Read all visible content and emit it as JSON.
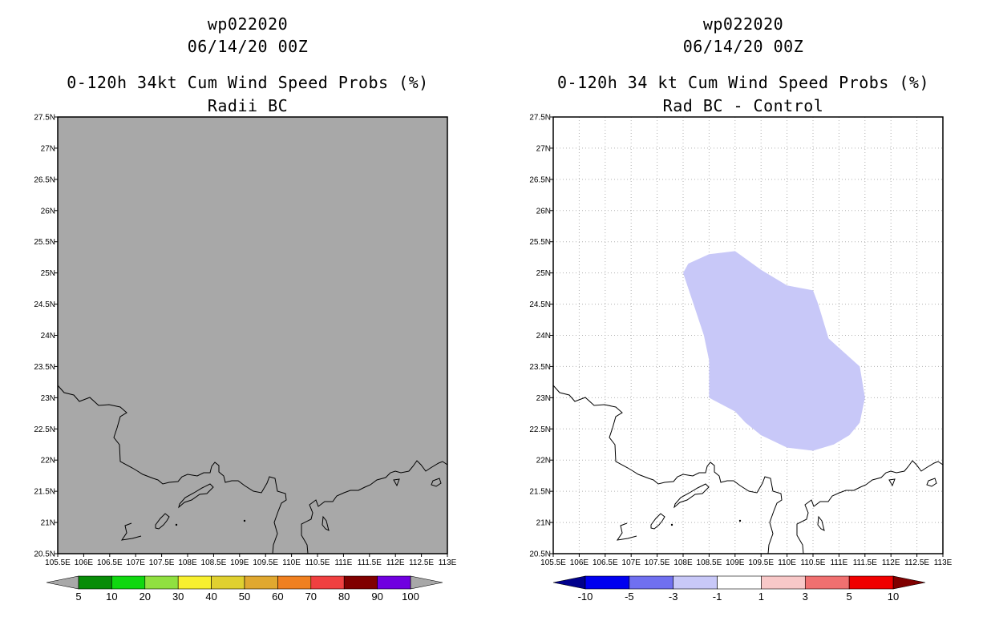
{
  "panels": [
    {
      "storm_id": "wp022020",
      "datetime": "06/14/20 00Z",
      "product": "0-120h 34kt Cum Wind Speed Probs (%)",
      "subtitle": "Radii BC",
      "colorbar": {
        "labels": [
          "5",
          "10",
          "20",
          "30",
          "40",
          "50",
          "60",
          "70",
          "80",
          "90",
          "100"
        ],
        "colors": [
          "#088c08",
          "#10d810",
          "#90e040",
          "#f8f030",
          "#e0d030",
          "#e0a830",
          "#f08020",
          "#f04040",
          "#800000",
          "#7000e0"
        ],
        "underflow": "#a8a8a8",
        "overflow": "#a8a8a8"
      }
    },
    {
      "storm_id": "wp022020",
      "datetime": "06/14/20 00Z",
      "product": "0-120h 34 kt Cum Wind Speed Probs (%)",
      "subtitle": "Rad BC - Control",
      "colorbar": {
        "labels": [
          "-10",
          "-5",
          "-3",
          "-1",
          "1",
          "3",
          "5",
          "10"
        ],
        "colors": [
          "#0000f0",
          "#7070f0",
          "#c8c8f8",
          "#ffffff",
          "#f8c8c8",
          "#f07070",
          "#f00000"
        ],
        "underflow": "#00008c",
        "overflow": "#800000"
      }
    }
  ],
  "map": {
    "lat_labels": [
      "27.5N",
      "27N",
      "26.5N",
      "26N",
      "25.5N",
      "25N",
      "24.5N",
      "24N",
      "23.5N",
      "23N",
      "22.5N",
      "22N",
      "21.5N",
      "21N",
      "20.5N"
    ],
    "lon_labels": [
      "105.5E",
      "106E",
      "106.5E",
      "107E",
      "107.5E",
      "108E",
      "108.5E",
      "109E",
      "109.5E",
      "110E",
      "110.5E",
      "111E",
      "111.5E",
      "112E",
      "112.5E",
      "113E"
    ],
    "left_background": "#a8a8a8",
    "anomaly_color": "#c8c8f8",
    "anomaly_polygon_latlon": [
      [
        108.0,
        25.0
      ],
      [
        108.1,
        25.15
      ],
      [
        108.5,
        25.3
      ],
      [
        109.0,
        25.35
      ],
      [
        109.5,
        25.05
      ],
      [
        110.0,
        24.8
      ],
      [
        110.5,
        24.72
      ],
      [
        110.6,
        24.5
      ],
      [
        110.8,
        23.95
      ],
      [
        111.0,
        23.8
      ],
      [
        111.4,
        23.5
      ],
      [
        111.5,
        23.0
      ],
      [
        111.4,
        22.6
      ],
      [
        111.2,
        22.4
      ],
      [
        110.9,
        22.25
      ],
      [
        110.5,
        22.15
      ],
      [
        110.0,
        22.2
      ],
      [
        109.5,
        22.4
      ],
      [
        109.2,
        22.6
      ],
      [
        109.0,
        22.78
      ],
      [
        108.5,
        23.0
      ],
      [
        108.5,
        23.6
      ],
      [
        108.4,
        24.0
      ],
      [
        108.2,
        24.5
      ],
      [
        108.0,
        25.0
      ]
    ]
  }
}
